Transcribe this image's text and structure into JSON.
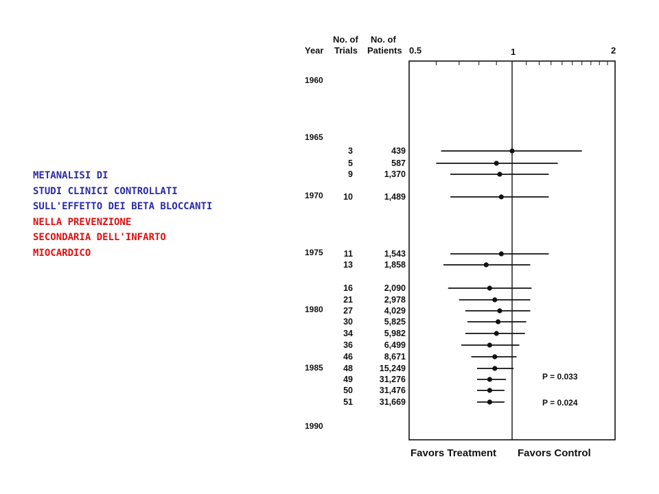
{
  "caption": [
    {
      "text": "METANALISI DI",
      "color": "#2a2aa6"
    },
    {
      "text": "STUDI CLINICI CONTROLLATI",
      "color": "#2a2aa6"
    },
    {
      "text": "SULL'EFFETTO DEI BETA BLOCCANTI",
      "color": "#2a2aa6"
    },
    {
      "text": "NELLA PREVENZIONE",
      "color": "#e01010"
    },
    {
      "text": "SECONDARIA DELL'INFARTO",
      "color": "#e01010"
    },
    {
      "text": "MIOCARDICO",
      "color": "#e01010"
    }
  ],
  "chart_data": {
    "type": "scatter",
    "scale": "log",
    "xlim": [
      0.5,
      2
    ],
    "reference_line": 1,
    "headers": {
      "year": "Year",
      "trials": [
        "No. of",
        "Trials"
      ],
      "patients": [
        "No. of",
        "Patients"
      ]
    },
    "x_ticks": [
      "0.5",
      "1",
      "2"
    ],
    "year_labels": [
      "1960",
      "1965",
      "1970",
      "1975",
      "1980",
      "1985",
      "1990"
    ],
    "rows": [
      {
        "trials": "3",
        "patients": "439",
        "or": 1.0,
        "lo": 0.62,
        "hi": 1.6
      },
      {
        "trials": "5",
        "patients": "587",
        "or": 0.9,
        "lo": 0.6,
        "hi": 1.36
      },
      {
        "trials": "9",
        "patients": "1,370",
        "or": 0.92,
        "lo": 0.66,
        "hi": 1.28
      },
      {
        "trials": "10",
        "patients": "1,489",
        "or": 0.93,
        "lo": 0.66,
        "hi": 1.28
      },
      {
        "trials": "11",
        "patients": "1,543",
        "or": 0.93,
        "lo": 0.66,
        "hi": 1.28
      },
      {
        "trials": "13",
        "patients": "1,858",
        "or": 0.84,
        "lo": 0.63,
        "hi": 1.13
      },
      {
        "trials": "16",
        "patients": "2,090",
        "or": 0.86,
        "lo": 0.65,
        "hi": 1.14
      },
      {
        "trials": "21",
        "patients": "2,978",
        "or": 0.89,
        "lo": 0.7,
        "hi": 1.13
      },
      {
        "trials": "27",
        "patients": "4,029",
        "or": 0.92,
        "lo": 0.73,
        "hi": 1.13
      },
      {
        "trials": "30",
        "patients": "5,825",
        "or": 0.91,
        "lo": 0.74,
        "hi": 1.1
      },
      {
        "trials": "34",
        "patients": "5,982",
        "or": 0.9,
        "lo": 0.73,
        "hi": 1.09
      },
      {
        "trials": "36",
        "patients": "6,499",
        "or": 0.86,
        "lo": 0.71,
        "hi": 1.05
      },
      {
        "trials": "46",
        "patients": "8,671",
        "or": 0.89,
        "lo": 0.76,
        "hi": 1.03
      },
      {
        "trials": "48",
        "patients": "15,249",
        "or": 0.89,
        "lo": 0.79,
        "hi": 1.01
      },
      {
        "trials": "49",
        "patients": "31,276",
        "or": 0.86,
        "lo": 0.79,
        "hi": 0.96
      },
      {
        "trials": "50",
        "patients": "31,476",
        "or": 0.86,
        "lo": 0.79,
        "hi": 0.95
      },
      {
        "trials": "51",
        "patients": "31,669",
        "or": 0.86,
        "lo": 0.79,
        "hi": 0.95
      }
    ],
    "annotations": [
      "P = 0.033",
      "P = 0.024"
    ],
    "footer": {
      "left": "Favors Treatment",
      "right": "Favors Control"
    }
  }
}
